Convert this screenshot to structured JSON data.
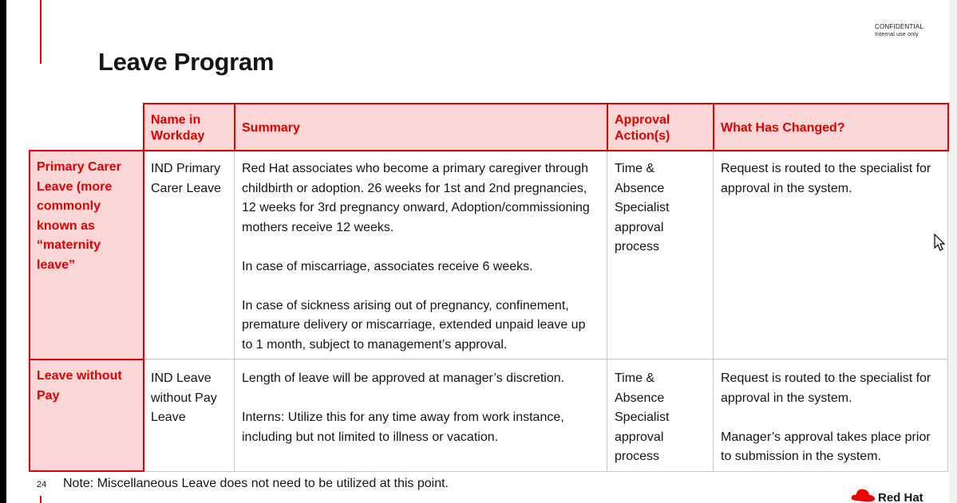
{
  "header": {
    "confidential": "CONFIDENTIAL",
    "internal": "Internal use only"
  },
  "slide": {
    "title": "Leave Program",
    "page_number": "24",
    "footnote": "Note: Miscellaneous Leave does not need to be utilized at this point.",
    "logo_text": "Red Hat",
    "logo_icon": "red-hat-fedora-icon"
  },
  "table": {
    "columns": [
      "Name in Workday",
      "Summary",
      "Approval Action(s)",
      "What Has Changed?"
    ],
    "rows": [
      {
        "label": "Primary Carer Leave (more commonly known as “maternity leave”",
        "name": "IND Primary Carer Leave",
        "summary": [
          "Red Hat associates who become a primary caregiver through childbirth or adoption.  26 weeks for 1st and 2nd pregnancies, 12 weeks for 3rd pregnancy onward, Adoption/commissioning mothers receive 12 weeks.",
          "In case of miscarriage, associates receive 6 weeks.",
          "In case of sickness arising out of pregnancy, confinement, premature delivery or miscarriage, extended unpaid leave up to 1 month, subject to management’s approval."
        ],
        "approval": "Time & Absence Specialist approval process",
        "changed": [
          "Request is routed to the specialist for approval in the system."
        ]
      },
      {
        "label": "Leave without Pay",
        "name": "IND Leave without Pay Leave",
        "summary": [
          "Length of leave will be approved at manager’s discretion.",
          "Interns: Utilize this for any time away from work instance, including but not limited to illness or vacation."
        ],
        "approval": "Time & Absence Specialist approval process",
        "changed": [
          "Request is routed to the specialist for approval in the system.",
          "Manager’s approval takes place prior to submission in the system."
        ]
      }
    ]
  },
  "colors": {
    "accent": "#ee0000",
    "header_fill": "#fbd6d6",
    "header_text": "#d90000"
  }
}
